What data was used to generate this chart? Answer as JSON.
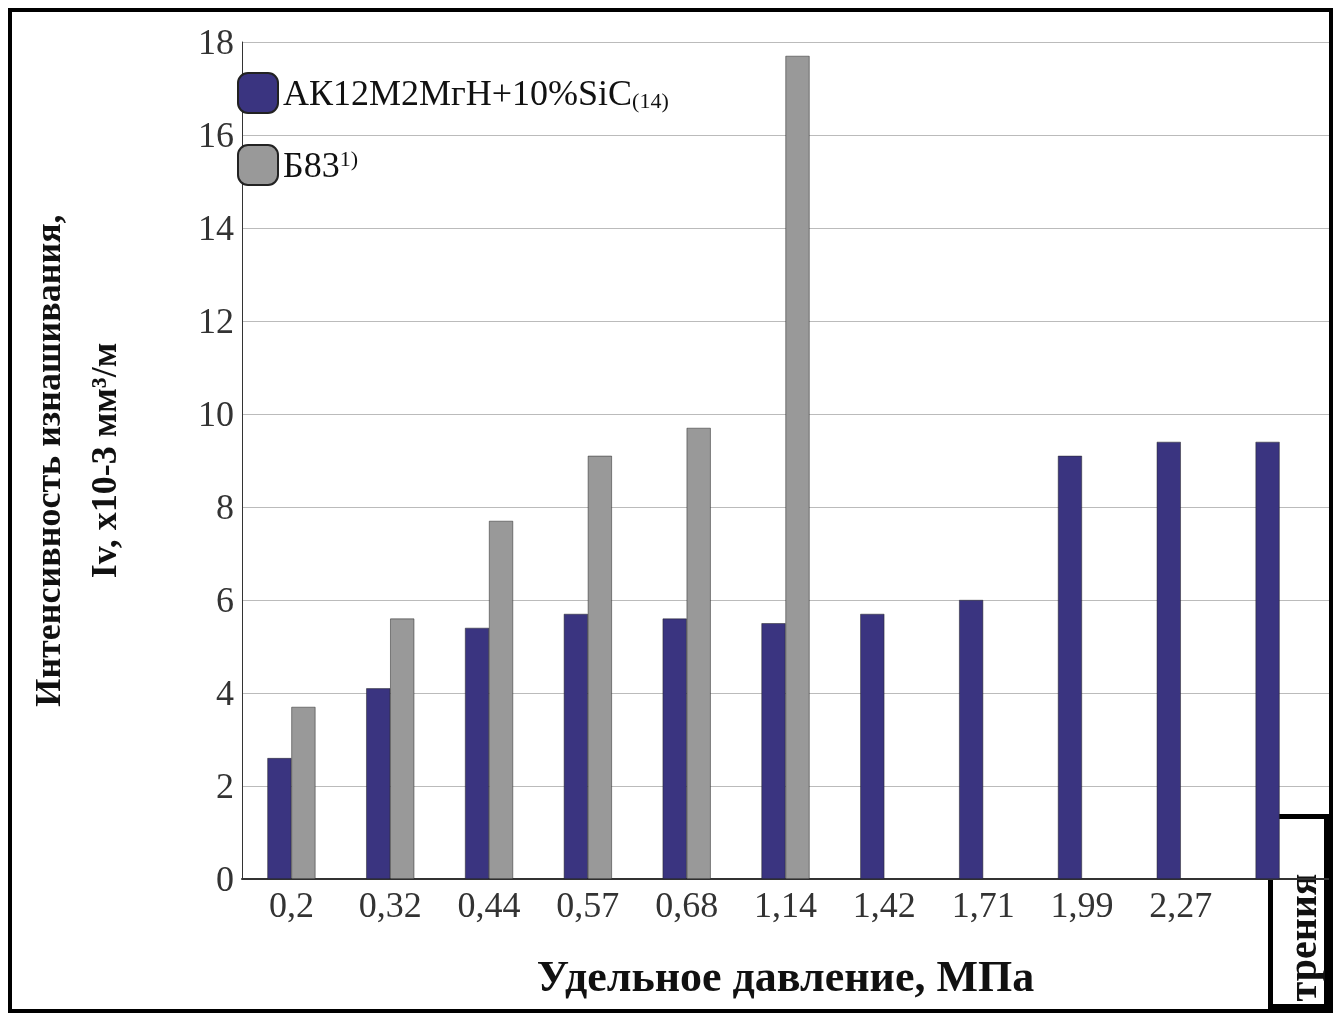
{
  "chart_data": {
    "type": "bar",
    "xlabel": "Удельное давление, МПа",
    "ylabel": "Интенсивность изнашивания,\nIv, x10-3 мм³/м",
    "categories": [
      "0,2",
      "0,32",
      "0,44",
      "0,57",
      "0,68",
      "1,14",
      "1,42",
      "1,71",
      "1,99",
      "2,27",
      null
    ],
    "series": [
      {
        "name": "АК12М2МгН+10%SiC$_{(14)}$",
        "color": "#3a3480",
        "values": [
          2.6,
          4.1,
          5.4,
          5.7,
          5.6,
          5.5,
          5.7,
          6.0,
          9.1,
          9.4,
          9.4
        ]
      },
      {
        "name": "Б83$^{1)}$",
        "color": "#999999",
        "values": [
          3.7,
          5.6,
          7.7,
          9.1,
          9.7,
          17.7,
          null,
          null,
          null,
          null,
          null
        ]
      }
    ],
    "ylim": [
      0,
      18
    ],
    "yticks": [
      0,
      2,
      4,
      6,
      8,
      10,
      12,
      14,
      16,
      18
    ],
    "grid": "y",
    "legend": "top left",
    "annotations": [
      "трения"
    ]
  }
}
